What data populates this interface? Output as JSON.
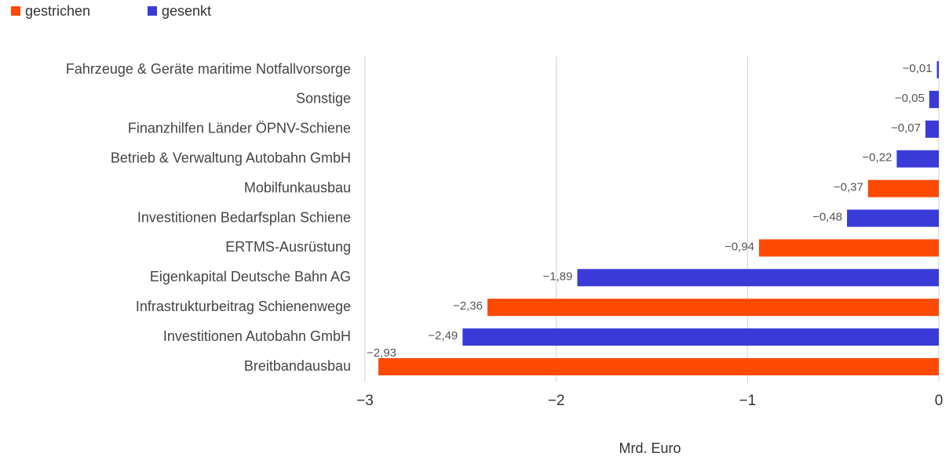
{
  "chart_data": {
    "type": "hbar",
    "categories": [
      "Fahrzeuge & Geräte maritime Notfallvorsorge",
      "Sonstige",
      "Finanzhilfen Länder ÖPNV-Schiene",
      "Betrieb & Verwaltung Autobahn GmbH",
      "Mobilfunkausbau",
      "Investitionen Bedarfsplan Schiene",
      "ERTMS-Ausrüstung",
      "Eigenkapital Deutsche Bahn AG",
      "Infrastrukturbeitrag Schienenwege",
      "Investitionen Autobahn GmbH",
      "Breitbandausbau"
    ],
    "series": [
      {
        "name": "gestrichen",
        "color": "#fc4a05",
        "values": [
          null,
          null,
          null,
          null,
          -0.37,
          null,
          -0.94,
          null,
          -2.36,
          null,
          -2.93
        ],
        "value_labels": [
          null,
          null,
          null,
          null,
          "−0,37",
          null,
          "−0,94",
          null,
          "−2,36",
          null,
          "−2,93"
        ]
      },
      {
        "name": "gesenkt",
        "color": "#3a3ad8",
        "values": [
          -0.01,
          -0.05,
          -0.07,
          -0.22,
          null,
          -0.48,
          null,
          -1.89,
          null,
          -2.49,
          null
        ],
        "value_labels": [
          "−0,01",
          "−0,05",
          "−0,07",
          "−0,22",
          null,
          "−0,48",
          null,
          "−1,89",
          null,
          "−2,49",
          null
        ]
      }
    ],
    "xlabel": "Mrd. Euro",
    "xlim": [
      -3,
      0
    ],
    "xticks": [
      {
        "value": -3,
        "label": "−3"
      },
      {
        "value": -2,
        "label": "−2"
      },
      {
        "value": -1,
        "label": "−1"
      },
      0
    ],
    "grid": true
  }
}
